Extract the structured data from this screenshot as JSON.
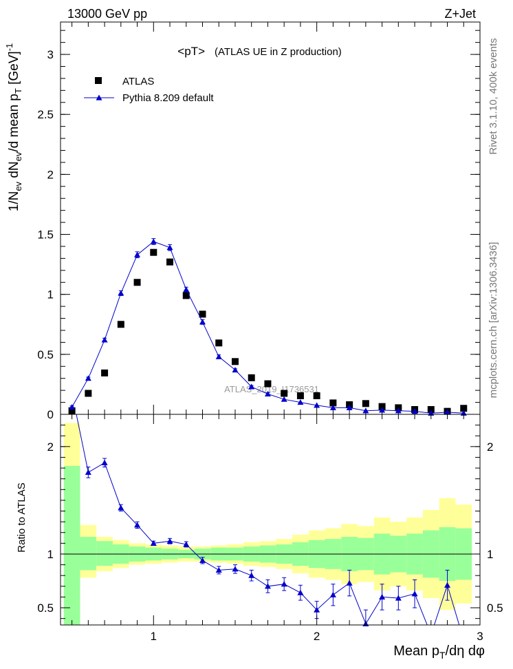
{
  "header": {
    "left": "13000 GeV pp",
    "right": "Z+Jet"
  },
  "side_text": {
    "rivet": "Rivet 3.1.10,  400k events",
    "mcplots": "mcplots.cern.ch [arXiv:1306.3436]"
  },
  "chart_data": [
    {
      "type": "scatter",
      "panel": "main",
      "title": "<pT>",
      "subtitle": "(ATLAS UE in Z production)",
      "watermark": "ATLAS_2019_I1736531",
      "ylabel": "1/N_ev dN_ev/d mean p_T [GeV]^-1",
      "xlim": [
        0.43,
        3.0
      ],
      "ylim": [
        0,
        3.27
      ],
      "yticks": [
        0,
        0.5,
        1,
        1.5,
        2,
        2.5,
        3
      ],
      "ytick_labels": [
        "0",
        "0.5",
        "1",
        "1.5",
        "2",
        "2.5",
        "3"
      ],
      "legend_position": "top-left",
      "series": [
        {
          "name": "ATLAS",
          "style": "marker-square",
          "color": "#000000",
          "x": [
            0.5,
            0.6,
            0.7,
            0.8,
            0.9,
            1.0,
            1.1,
            1.2,
            1.3,
            1.4,
            1.5,
            1.6,
            1.7,
            1.8,
            1.9,
            2.0,
            2.1,
            2.2,
            2.3,
            2.4,
            2.5,
            2.6,
            2.7,
            2.8,
            2.9
          ],
          "y": [
            0.03,
            0.175,
            0.345,
            0.75,
            1.1,
            1.35,
            1.27,
            0.99,
            0.835,
            0.595,
            0.44,
            0.305,
            0.255,
            0.175,
            0.155,
            0.155,
            0.095,
            0.08,
            0.09,
            0.065,
            0.055,
            0.04,
            0.04,
            0.025,
            0.05
          ]
        },
        {
          "name": "Pythia 8.209 default",
          "style": "line-triangle",
          "color": "#0000cc",
          "x": [
            0.5,
            0.6,
            0.7,
            0.8,
            0.9,
            1.0,
            1.1,
            1.2,
            1.3,
            1.4,
            1.5,
            1.6,
            1.7,
            1.8,
            1.9,
            2.0,
            2.1,
            2.2,
            2.3,
            2.4,
            2.5,
            2.6,
            2.7,
            2.8,
            2.9
          ],
          "y": [
            0.06,
            0.3,
            0.62,
            1.01,
            1.33,
            1.44,
            1.39,
            1.04,
            0.77,
            0.48,
            0.37,
            0.23,
            0.17,
            0.125,
            0.1,
            0.075,
            0.055,
            0.055,
            0.03,
            0.035,
            0.03,
            0.025,
            0.01,
            0.018,
            0.01
          ],
          "yerr": [
            0.01,
            0.01,
            0.015,
            0.02,
            0.025,
            0.025,
            0.025,
            0.02,
            0.02,
            0.015,
            0.01,
            0.01,
            0.01,
            0.005,
            0.005,
            0.005,
            0.005,
            0.005,
            0.005,
            0.005,
            0.005,
            0.005,
            0.005,
            0.005,
            0.005
          ]
        }
      ]
    },
    {
      "type": "line",
      "panel": "ratio",
      "ylabel": "Ratio to ATLAS",
      "xlabel": "Mean p_T/dη dφ",
      "xlim": [
        0.43,
        3.0
      ],
      "ylim": [
        0.34,
        2.3
      ],
      "xticks": [
        1,
        2,
        3
      ],
      "xtick_labels": [
        "1",
        "2",
        "3"
      ],
      "yticks": [
        0.5,
        1,
        2
      ],
      "ytick_labels": [
        "0.5",
        "1",
        "2"
      ],
      "reference_line": 1,
      "bands": {
        "bin_edges": [
          0.45,
          0.55,
          0.65,
          0.75,
          0.85,
          0.95,
          1.05,
          1.15,
          1.25,
          1.35,
          1.45,
          1.55,
          1.65,
          1.75,
          1.85,
          1.95,
          2.05,
          2.15,
          2.25,
          2.35,
          2.45,
          2.55,
          2.65,
          2.75,
          2.85,
          2.95
        ],
        "green_lo": [
          0.34,
          0.85,
          0.89,
          0.91,
          0.93,
          0.94,
          0.95,
          0.96,
          0.95,
          0.94,
          0.94,
          0.93,
          0.92,
          0.91,
          0.89,
          0.87,
          0.86,
          0.84,
          0.85,
          0.81,
          0.83,
          0.81,
          0.78,
          0.75,
          0.76
        ],
        "green_hi": [
          1.82,
          1.16,
          1.12,
          1.09,
          1.07,
          1.06,
          1.05,
          1.04,
          1.05,
          1.06,
          1.06,
          1.07,
          1.08,
          1.09,
          1.11,
          1.13,
          1.14,
          1.16,
          1.15,
          1.19,
          1.17,
          1.19,
          1.22,
          1.25,
          1.24
        ],
        "yellow_lo": [
          0.34,
          0.78,
          0.84,
          0.87,
          0.9,
          0.91,
          0.92,
          0.93,
          0.93,
          0.92,
          0.91,
          0.89,
          0.88,
          0.86,
          0.82,
          0.78,
          0.76,
          0.72,
          0.74,
          0.66,
          0.7,
          0.66,
          0.59,
          0.48,
          0.54
        ],
        "yellow_hi": [
          2.22,
          1.27,
          1.16,
          1.13,
          1.1,
          1.09,
          1.08,
          1.07,
          1.07,
          1.08,
          1.09,
          1.11,
          1.12,
          1.14,
          1.18,
          1.22,
          1.24,
          1.28,
          1.26,
          1.34,
          1.3,
          1.34,
          1.41,
          1.52,
          1.46
        ]
      },
      "series": [
        {
          "name": "Pythia 8.209 default",
          "color": "#0000cc",
          "x": [
            0.5,
            0.6,
            0.7,
            0.8,
            0.9,
            1.0,
            1.1,
            1.2,
            1.3,
            1.4,
            1.5,
            1.6,
            1.7,
            1.8,
            1.9,
            2.0,
            2.1,
            2.2,
            2.3,
            2.4,
            2.5,
            2.6,
            2.7,
            2.8,
            2.9
          ],
          "y": [
            2.5,
            1.76,
            1.85,
            1.43,
            1.27,
            1.1,
            1.12,
            1.09,
            0.94,
            0.85,
            0.86,
            0.8,
            0.7,
            0.72,
            0.64,
            0.48,
            0.62,
            0.73,
            0.35,
            0.6,
            0.59,
            0.63,
            0.25,
            0.71,
            0.2
          ],
          "yerr": [
            0.1,
            0.05,
            0.04,
            0.03,
            0.03,
            0.02,
            0.025,
            0.025,
            0.03,
            0.035,
            0.04,
            0.05,
            0.06,
            0.06,
            0.07,
            0.08,
            0.1,
            0.12,
            0.13,
            0.12,
            0.11,
            0.13,
            0.15,
            0.14,
            0.15
          ]
        }
      ]
    }
  ]
}
